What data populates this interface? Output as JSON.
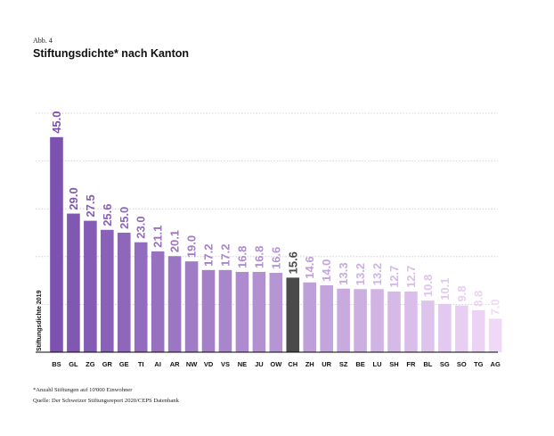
{
  "figure_label": "Abb. 4",
  "title": "Stiftungsdichte* nach Kanton",
  "footnotes": [
    "*Anzahl Stiftungen auf 10'000 Einwohner",
    "Quelle: Der Schweizer Stiftungsreport 2020/CEPS Datenbank"
  ],
  "chart_data": {
    "type": "bar",
    "categories": [
      "BS",
      "GL",
      "ZG",
      "GR",
      "GE",
      "TI",
      "AI",
      "AR",
      "NW",
      "VD",
      "VS",
      "NE",
      "JU",
      "OW",
      "CH",
      "ZH",
      "UR",
      "SZ",
      "BE",
      "LU",
      "SH",
      "FR",
      "BL",
      "SG",
      "SO",
      "TG",
      "AG"
    ],
    "values": [
      45.0,
      29.0,
      27.5,
      25.6,
      25.0,
      23.0,
      21.1,
      20.1,
      19.0,
      17.2,
      17.2,
      16.8,
      16.8,
      16.6,
      15.6,
      14.6,
      14.0,
      13.3,
      13.2,
      13.2,
      12.7,
      12.7,
      10.8,
      10.1,
      9.8,
      8.8,
      7.0
    ],
    "value_labels": [
      "45.0",
      "29.0",
      "27.5",
      "25.6",
      "25.0",
      "23.0",
      "21.1",
      "20.1",
      "19.0",
      "17.2",
      "17.2",
      "16.8",
      "16.8",
      "16.6",
      "15.6",
      "14.6",
      "14.0",
      "13.3",
      "13.2",
      "13.2",
      "12.7",
      "12.7",
      "10.8",
      "10.1",
      "9.8",
      "8.8",
      "7.0"
    ],
    "highlight": "CH",
    "ylabel": "Stiftungsdichte 2019",
    "ylim": [
      0,
      50
    ],
    "gridlines": [
      10,
      20,
      30,
      40,
      50
    ],
    "grid": "dotted horizontal",
    "colors": {
      "bar_start": "#7c52b0",
      "bar_end": "#f0d8f7",
      "highlight": "#4a4a4a",
      "grid": "#c8c8c8",
      "axis": "#000000"
    }
  }
}
